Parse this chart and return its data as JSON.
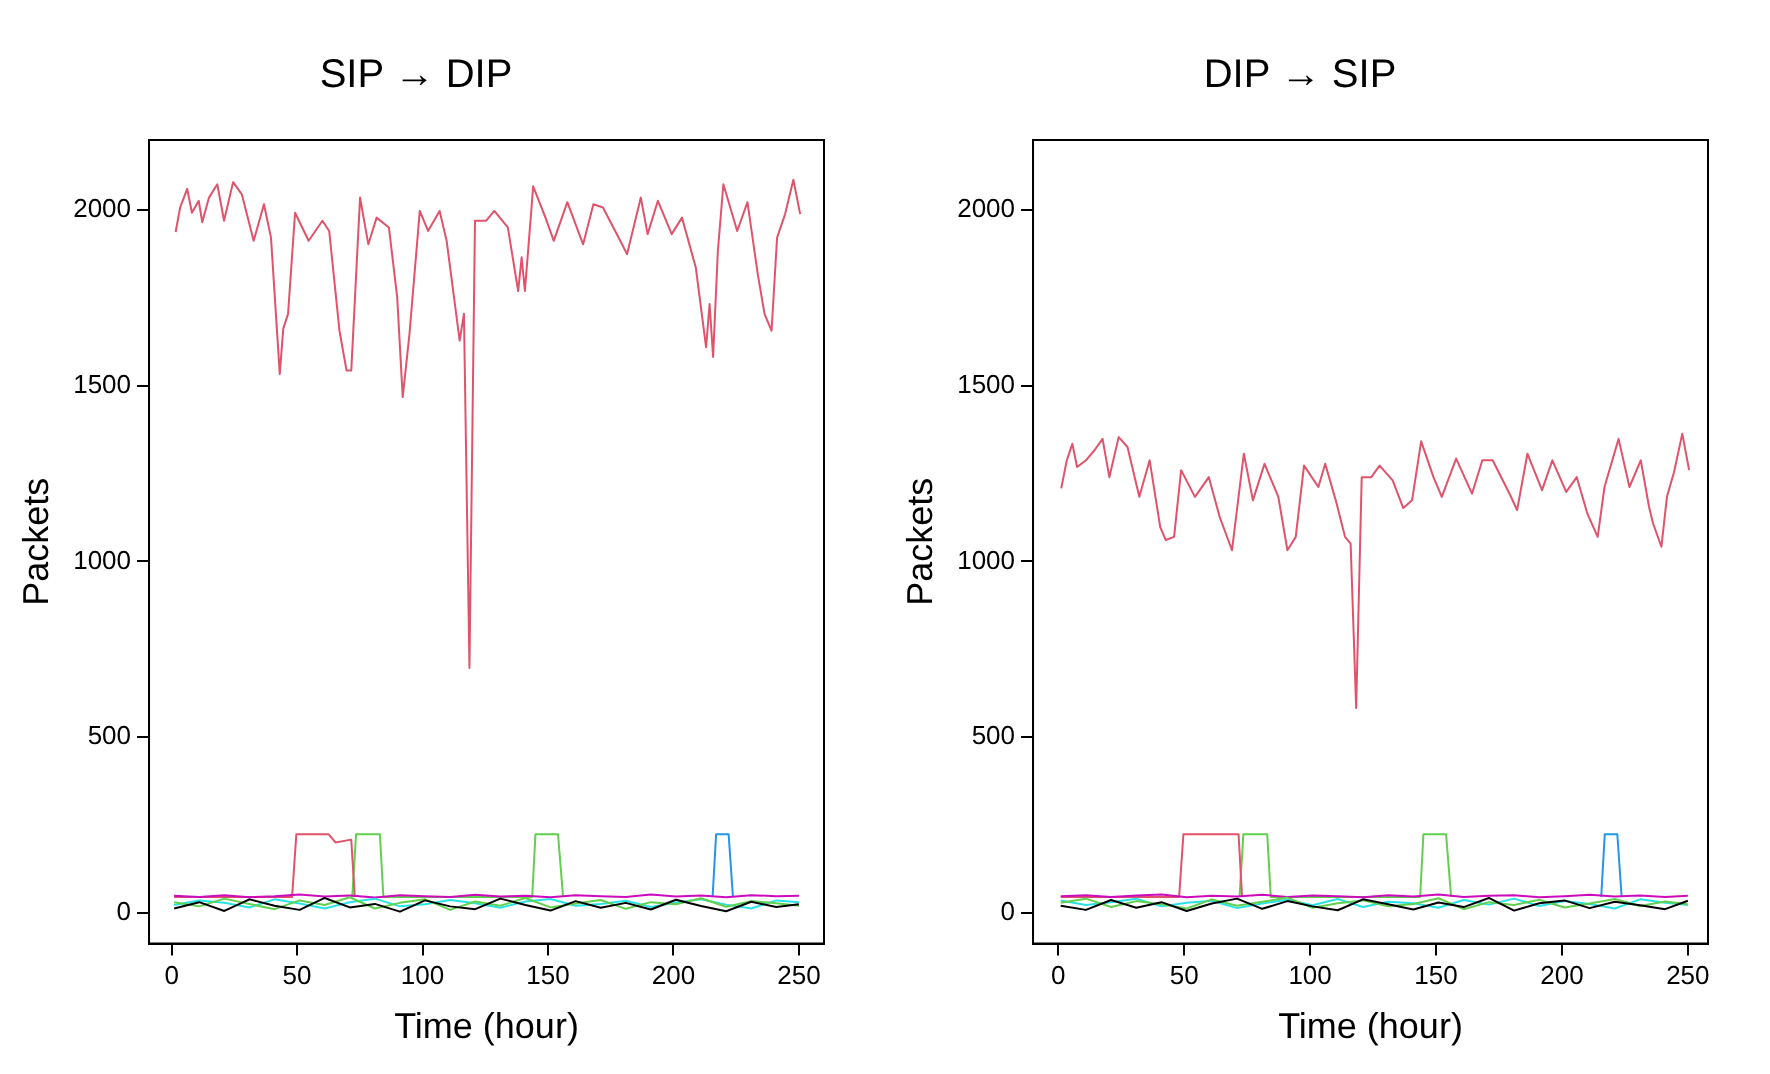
{
  "chart_data": [
    {
      "type": "line",
      "title": "SIP → DIP",
      "xlabel": "Time (hour)",
      "ylabel": "Packets",
      "xlim": [
        -9,
        260
      ],
      "ylim": [
        -88,
        2200
      ],
      "xticks": [
        0,
        50,
        100,
        150,
        200,
        250
      ],
      "yticks": [
        0,
        500,
        1000,
        1500,
        2000
      ],
      "grid": false,
      "legend": false,
      "marker": "none",
      "line_style": "solid",
      "series": [
        {
          "color": "#000000",
          "x": [
            1,
            11,
            21,
            31,
            41,
            51,
            61,
            71,
            81,
            91,
            101,
            111,
            121,
            131,
            141,
            151,
            161,
            171,
            181,
            191,
            201,
            211,
            221,
            231,
            241,
            250
          ],
          "values": [
            12,
            30,
            5,
            38,
            20,
            8,
            42,
            15,
            25,
            3,
            35,
            18,
            10,
            40,
            22,
            6,
            33,
            14,
            28,
            9,
            37,
            19,
            4,
            31,
            16,
            24
          ]
        },
        {
          "color": "#61d04f",
          "x": [
            1,
            11,
            21,
            31,
            41,
            51,
            61,
            71,
            81,
            91,
            101,
            111,
            121,
            131,
            141,
            151,
            161,
            171,
            181,
            191,
            201,
            211,
            221,
            231,
            241,
            250
          ],
          "values": [
            30,
            18,
            40,
            25,
            10,
            35,
            22,
            44,
            12,
            28,
            38,
            8,
            32,
            20,
            42,
            15,
            26,
            36,
            11,
            30,
            24,
            41,
            17,
            33,
            27,
            20
          ]
        },
        {
          "color": "#28e2e5",
          "x": [
            1,
            11,
            21,
            31,
            41,
            51,
            61,
            71,
            81,
            91,
            101,
            111,
            121,
            131,
            141,
            151,
            161,
            171,
            181,
            191,
            201,
            211,
            221,
            231,
            241,
            250
          ],
          "values": [
            22,
            35,
            28,
            15,
            38,
            26,
            12,
            30,
            40,
            18,
            24,
            36,
            27,
            14,
            32,
            39,
            20,
            25,
            34,
            16,
            29,
            38,
            23,
            12,
            35,
            30
          ]
        },
        {
          "color": "#cd0bbc",
          "x": [
            1,
            11,
            21,
            31,
            41,
            51,
            61,
            71,
            81,
            91,
            101,
            111,
            121,
            131,
            141,
            151,
            161,
            171,
            181,
            191,
            201,
            211,
            221,
            231,
            241,
            250
          ],
          "values": [
            48,
            45,
            50,
            44,
            47,
            52,
            46,
            49,
            43,
            50,
            47,
            45,
            51,
            46,
            48,
            44,
            50,
            47,
            45,
            52,
            46,
            49,
            44,
            50,
            47,
            48
          ]
        },
        {
          "color": "#df536b",
          "x": [
            1,
            48,
            49.7,
            62.6,
            65.3,
            71.6,
            73
          ],
          "values": [
            45,
            45,
            223,
            223,
            200,
            208,
            45
          ]
        },
        {
          "color": "#61d04f",
          "x": [
            72,
            73.5,
            83,
            84.4,
            143.7,
            145,
            154,
            156
          ],
          "values": [
            45,
            223,
            223,
            45,
            45,
            223,
            223,
            45
          ]
        },
        {
          "color": "#2297e6",
          "x": [
            215.6,
            217,
            222,
            223.7
          ],
          "values": [
            45,
            223,
            223,
            45
          ]
        },
        {
          "color": "#df536b",
          "x": [
            1.6,
            3.4,
            6.2,
            8.1,
            10.8,
            12.2,
            14.9,
            18.2,
            20.9,
            24.5,
            28,
            32.7,
            36.8,
            39.6,
            43.1,
            44.5,
            46.4,
            49.2,
            54.6,
            60.1,
            62.8,
            66.9,
            69.7,
            71.6,
            75.1,
            78.4,
            81.7,
            86.6,
            89.9,
            92.1,
            94.8,
            98.9,
            102.2,
            106.8,
            109.6,
            114.8,
            116.5,
            118.7,
            120.9,
            125.3,
            128.6,
            134,
            138.1,
            139.5,
            140.8,
            144.1,
            149,
            152.3,
            157.7,
            164,
            168.1,
            171.9,
            178.8,
            181.5,
            187,
            189.7,
            193.8,
            199.3,
            203.4,
            208.9,
            213,
            214.4,
            215.8,
            217.7,
            219.9,
            225.4,
            229.5,
            233.6,
            236.3,
            239.1,
            241.3,
            244.5,
            247.8,
            250.5
          ],
          "values": [
            1938,
            2008,
            2061,
            1993,
            2027,
            1966,
            2036,
            2074,
            1970,
            2080,
            2045,
            1913,
            2017,
            1922,
            1534,
            1663,
            1705,
            1993,
            1913,
            1970,
            1941,
            1657,
            1544,
            1544,
            2036,
            1903,
            1979,
            1951,
            1752,
            1468,
            1648,
            1998,
            1941,
            1998,
            1913,
            1629,
            1705,
            697,
            1970,
            1970,
            1998,
            1951,
            1770,
            1866,
            1770,
            2068,
            1979,
            1913,
            2023,
            1903,
            2017,
            2008,
            1913,
            1875,
            2036,
            1932,
            2027,
            1932,
            1979,
            1837,
            1610,
            1733,
            1582,
            1884,
            2074,
            1941,
            2023,
            1818,
            1705,
            1657,
            1922,
            1989,
            2087,
            1989
          ]
        }
      ]
    },
    {
      "type": "line",
      "title": "DIP → SIP",
      "xlabel": "Time (hour)",
      "ylabel": "Packets",
      "xlim": [
        -10,
        258
      ],
      "ylim": [
        -88,
        2200
      ],
      "xticks": [
        0,
        50,
        100,
        150,
        200,
        250
      ],
      "yticks": [
        0,
        500,
        1000,
        1500,
        2000
      ],
      "grid": false,
      "legend": false,
      "marker": "none",
      "line_style": "solid",
      "series": [
        {
          "color": "#000000",
          "x": [
            1,
            11,
            21,
            31,
            41,
            51,
            61,
            71,
            81,
            91,
            101,
            111,
            121,
            131,
            141,
            151,
            161,
            171,
            181,
            191,
            201,
            211,
            221,
            231,
            241,
            250
          ],
          "values": [
            20,
            8,
            36,
            14,
            30,
            5,
            26,
            40,
            11,
            33,
            18,
            7,
            38,
            24,
            9,
            29,
            16,
            42,
            6,
            27,
            35,
            13,
            31,
            21,
            10,
            34
          ]
        },
        {
          "color": "#61d04f",
          "x": [
            1,
            11,
            21,
            31,
            41,
            51,
            61,
            71,
            81,
            91,
            101,
            111,
            121,
            131,
            141,
            151,
            161,
            171,
            181,
            191,
            201,
            211,
            221,
            231,
            241,
            250
          ],
          "values": [
            28,
            40,
            16,
            33,
            24,
            12,
            38,
            20,
            31,
            43,
            14,
            27,
            35,
            18,
            25,
            41,
            10,
            30,
            22,
            37,
            15,
            26,
            39,
            19,
            32,
            24
          ]
        },
        {
          "color": "#28e2e5",
          "x": [
            1,
            11,
            21,
            31,
            41,
            51,
            61,
            71,
            81,
            91,
            101,
            111,
            121,
            131,
            141,
            151,
            161,
            171,
            181,
            191,
            201,
            211,
            221,
            231,
            241,
            250
          ],
          "values": [
            35,
            22,
            30,
            40,
            18,
            28,
            34,
            13,
            26,
            37,
            21,
            39,
            16,
            31,
            27,
            14,
            36,
            23,
            40,
            19,
            33,
            25,
            12,
            38,
            28,
            22
          ]
        },
        {
          "color": "#cd0bbc",
          "x": [
            1,
            11,
            21,
            31,
            41,
            51,
            61,
            71,
            81,
            91,
            101,
            111,
            121,
            131,
            141,
            151,
            161,
            171,
            181,
            191,
            201,
            211,
            221,
            231,
            241,
            250
          ],
          "values": [
            47,
            50,
            45,
            49,
            52,
            44,
            48,
            46,
            51,
            45,
            49,
            47,
            44,
            50,
            46,
            52,
            45,
            48,
            50,
            44,
            47,
            51,
            46,
            49,
            45,
            48
          ]
        },
        {
          "color": "#df536b",
          "x": [
            1,
            48,
            49.7,
            71.6,
            73
          ],
          "values": [
            45,
            45,
            223,
            223,
            45
          ]
        },
        {
          "color": "#61d04f",
          "x": [
            72,
            73.5,
            83,
            84.4,
            143.7,
            145,
            154,
            156
          ],
          "values": [
            45,
            223,
            223,
            45,
            45,
            223,
            223,
            45
          ]
        },
        {
          "color": "#2297e6",
          "x": [
            215.6,
            217,
            222,
            223.7
          ],
          "values": [
            45,
            223,
            223,
            45
          ]
        },
        {
          "color": "#df536b",
          "x": [
            1.2,
            3.4,
            5.6,
            7.5,
            11,
            14.3,
            17.6,
            20.3,
            24,
            27.5,
            32.2,
            36.3,
            40.5,
            42.7,
            46,
            48.8,
            54.3,
            59.8,
            64.1,
            69,
            73.7,
            77.3,
            81.9,
            87.4,
            91,
            94.3,
            97.6,
            103.3,
            106,
            110.2,
            113.9,
            116.1,
            118.3,
            120.5,
            124.3,
            127.6,
            132.8,
            137,
            140.5,
            144.1,
            149,
            152.3,
            158,
            164.3,
            168.4,
            172.5,
            179.4,
            182.2,
            186.3,
            192.1,
            196.2,
            201.7,
            205.9,
            210.1,
            214.2,
            216.9,
            222.5,
            226.8,
            231.3,
            234.6,
            236.2,
            239.5,
            241.7,
            244.5,
            247.8,
            250.5
          ],
          "values": [
            1208,
            1288,
            1335,
            1269,
            1288,
            1316,
            1349,
            1240,
            1354,
            1326,
            1184,
            1288,
            1098,
            1061,
            1070,
            1260,
            1184,
            1240,
            1127,
            1032,
            1307,
            1174,
            1278,
            1184,
            1032,
            1070,
            1273,
            1212,
            1278,
            1174,
            1070,
            1051,
            583,
            1240,
            1240,
            1273,
            1231,
            1152,
            1174,
            1342,
            1240,
            1184,
            1293,
            1193,
            1288,
            1288,
            1190,
            1146,
            1307,
            1203,
            1288,
            1198,
            1240,
            1136,
            1070,
            1212,
            1349,
            1212,
            1288,
            1155,
            1108,
            1042,
            1184,
            1254,
            1364,
            1260
          ]
        }
      ]
    }
  ]
}
